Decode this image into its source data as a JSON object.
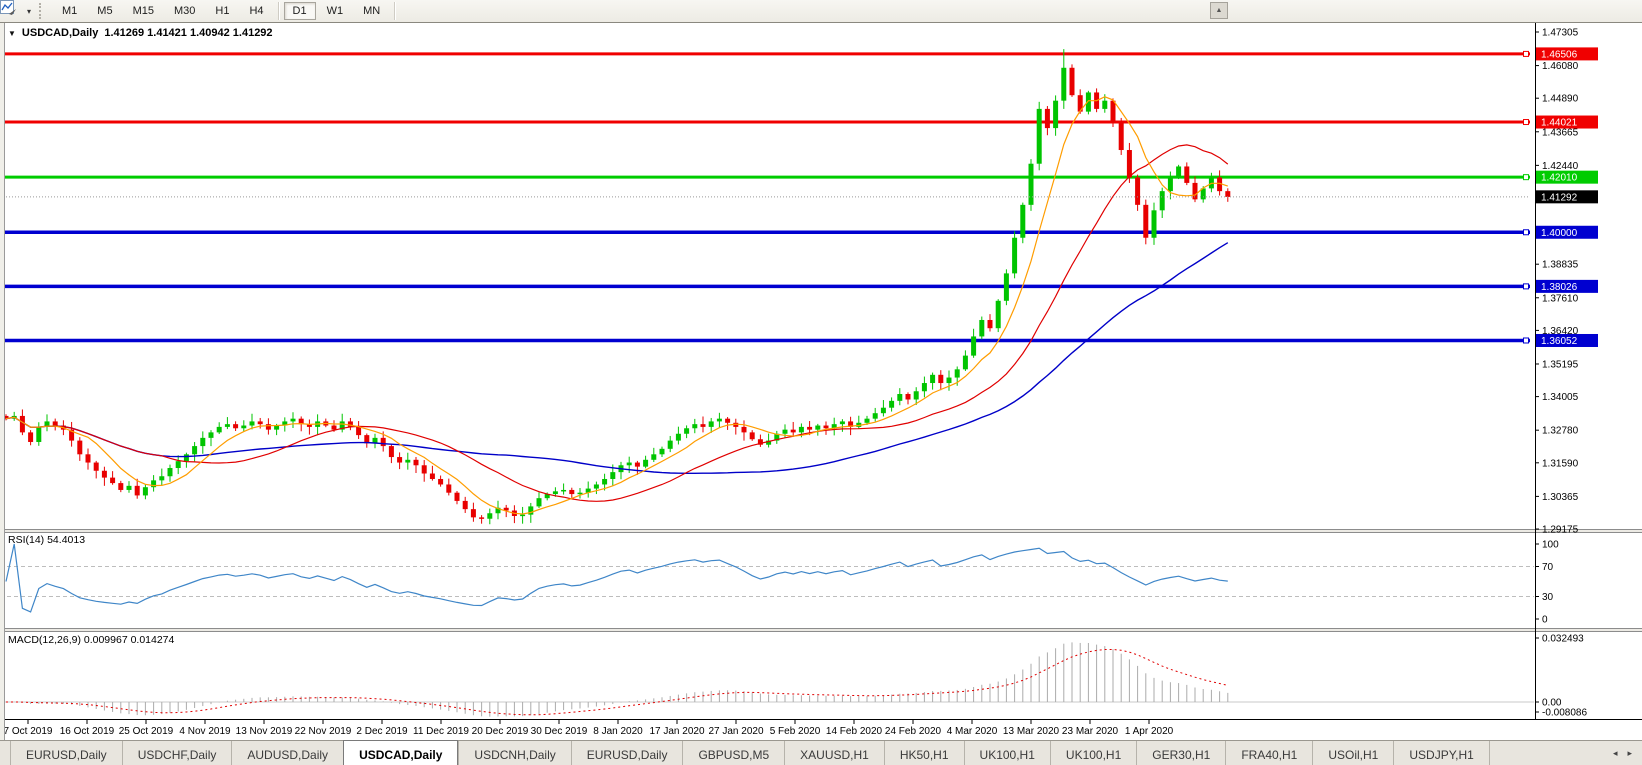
{
  "toolbar": {
    "timeframes": [
      "M1",
      "M5",
      "M15",
      "M30",
      "H1",
      "H4",
      "D1",
      "W1",
      "MN"
    ],
    "active_timeframe": "D1"
  },
  "window": {
    "title_symbol": "USDCAD,Daily",
    "title_ohlc": "1.41269 1.41421 1.40942 1.41292"
  },
  "price_axis": {
    "ticks": [
      "1.47305",
      "1.46080",
      "1.44890",
      "1.43665",
      "1.42440",
      "1.38835",
      "1.37610",
      "1.36420",
      "1.35195",
      "1.34005",
      "1.32780",
      "1.31590",
      "1.30365",
      "1.29175"
    ]
  },
  "levels": [
    {
      "label": "1.46506",
      "value": 1.46506,
      "color": "#f00000",
      "type": "resistance"
    },
    {
      "label": "1.44021",
      "value": 1.44021,
      "color": "#f00000",
      "type": "resistance"
    },
    {
      "label": "1.42010",
      "value": 1.4201,
      "color": "#00cc00",
      "type": "pivot"
    },
    {
      "label": "1.40000",
      "value": 1.4,
      "color": "#0000d0",
      "type": "support"
    },
    {
      "label": "1.38026",
      "value": 1.38026,
      "color": "#0000d0",
      "type": "support"
    },
    {
      "label": "1.36052",
      "value": 1.36052,
      "color": "#0000d0",
      "type": "support"
    }
  ],
  "current_price": {
    "label": "1.41292",
    "value": 1.41292
  },
  "indicators": {
    "rsi": {
      "label": "RSI(14) 54.4013",
      "period": 14,
      "last_value": "54.4013",
      "ticks": [
        {
          "label": "100",
          "value": 100
        },
        {
          "label": "70",
          "value": 70
        },
        {
          "label": "30",
          "value": 30
        },
        {
          "label": "0",
          "value": 0
        }
      ],
      "dashed_levels": [
        70,
        30
      ]
    },
    "macd": {
      "label": "MACD(12,26,9) 0.009967 0.014274",
      "params": [
        12,
        26,
        9
      ],
      "main_value": "0.009967",
      "signal_value": "0.014274",
      "ticks": [
        {
          "label": "0.032493",
          "value": 0.032493
        },
        {
          "label": "0.00",
          "value": 0
        },
        {
          "label": "-0.008086",
          "value": -0.008086
        }
      ]
    }
  },
  "dates": [
    "7 Oct 2019",
    "16 Oct 2019",
    "25 Oct 2019",
    "4 Nov 2019",
    "13 Nov 2019",
    "22 Nov 2019",
    "2 Dec 2019",
    "11 Dec 2019",
    "20 Dec 2019",
    "30 Dec 2019",
    "8 Jan 2020",
    "17 Jan 2020",
    "27 Jan 2020",
    "5 Feb 2020",
    "14 Feb 2020",
    "24 Feb 2020",
    "4 Mar 2020",
    "13 Mar 2020",
    "23 Mar 2020",
    "1 Apr 2020"
  ],
  "tabs": {
    "items": [
      {
        "label": "EURUSD,Daily"
      },
      {
        "label": "USDCHF,Daily"
      },
      {
        "label": "AUDUSD,Daily"
      },
      {
        "label": "USDCAD,Daily"
      },
      {
        "label": "USDCNH,Daily"
      },
      {
        "label": "EURUSD,Daily"
      },
      {
        "label": "GBPUSD,M5"
      },
      {
        "label": "XAUUSD,H1"
      },
      {
        "label": "HK50,H1"
      },
      {
        "label": "UK100,H1"
      },
      {
        "label": "UK100,H1"
      },
      {
        "label": "GER30,H1"
      },
      {
        "label": "FRA40,H1"
      },
      {
        "label": "USOil,H1"
      },
      {
        "label": "USDJPY,H1"
      }
    ],
    "active_index": 3,
    "scroll_left_icon": "◂",
    "scroll_right_icon": "▸"
  },
  "colors": {
    "bull": "#00c400",
    "bear": "#e80000",
    "ma_fast": "#ff9d00",
    "ma_medium": "#e00000",
    "ma_slow": "#0000c8",
    "rsi_line": "#3f86c8",
    "macd_hist": "#ababab",
    "macd_signal": "#e00000",
    "axis_text": "#000000"
  },
  "chart_data": {
    "type": "candlestick",
    "symbol": "USDCAD",
    "period": "Daily",
    "price_range": {
      "top": 1.47305,
      "bottom": 1.29175
    },
    "ohlc_display": {
      "open": 1.41269,
      "high": 1.41421,
      "low": 1.40942,
      "close": 1.41292
    },
    "peak_high": 1.4668,
    "moving_averages": [
      {
        "name": "fast",
        "period": 7
      },
      {
        "name": "medium",
        "period": 20
      },
      {
        "name": "slow",
        "period": 45
      }
    ],
    "closes": [
      1.332,
      1.333,
      1.327,
      1.3235,
      1.329,
      1.331,
      1.3295,
      1.328,
      1.324,
      1.319,
      1.316,
      1.313,
      1.3105,
      1.3085,
      1.306,
      1.3075,
      1.304,
      1.307,
      1.3095,
      1.311,
      1.314,
      1.3165,
      1.319,
      1.322,
      1.325,
      1.327,
      1.329,
      1.33,
      1.3285,
      1.3295,
      1.331,
      1.33,
      1.328,
      1.3295,
      1.331,
      1.332,
      1.33,
      1.329,
      1.331,
      1.3295,
      1.328,
      1.331,
      1.329,
      1.326,
      1.323,
      1.325,
      1.322,
      1.318,
      1.316,
      1.317,
      1.315,
      1.312,
      1.31,
      1.308,
      1.305,
      1.302,
      1.299,
      1.296,
      1.2955,
      1.2975,
      1.2995,
      1.2985,
      1.2965,
      1.297,
      1.3,
      1.303,
      1.3045,
      1.3055,
      1.306,
      1.3045,
      1.305,
      1.3065,
      1.308,
      1.31,
      1.3125,
      1.315,
      1.316,
      1.3145,
      1.317,
      1.319,
      1.321,
      1.324,
      1.3265,
      1.3285,
      1.33,
      1.329,
      1.331,
      1.332,
      1.3305,
      1.329,
      1.327,
      1.3245,
      1.3225,
      1.324,
      1.3265,
      1.328,
      1.327,
      1.329,
      1.328,
      1.3295,
      1.3285,
      1.33,
      1.331,
      1.329,
      1.3305,
      1.332,
      1.334,
      1.336,
      1.3385,
      1.341,
      1.339,
      1.342,
      1.345,
      1.348,
      1.345,
      1.347,
      1.35,
      1.355,
      1.362,
      1.368,
      1.365,
      1.375,
      1.385,
      1.398,
      1.41,
      1.425,
      1.445,
      1.438,
      1.448,
      1.46,
      1.45,
      1.444,
      1.451,
      1.445,
      1.448,
      1.44,
      1.43,
      1.42,
      1.41,
      1.398,
      1.408,
      1.415,
      1.42,
      1.424,
      1.418,
      1.412,
      1.416,
      1.42,
      1.415,
      1.4129
    ]
  }
}
